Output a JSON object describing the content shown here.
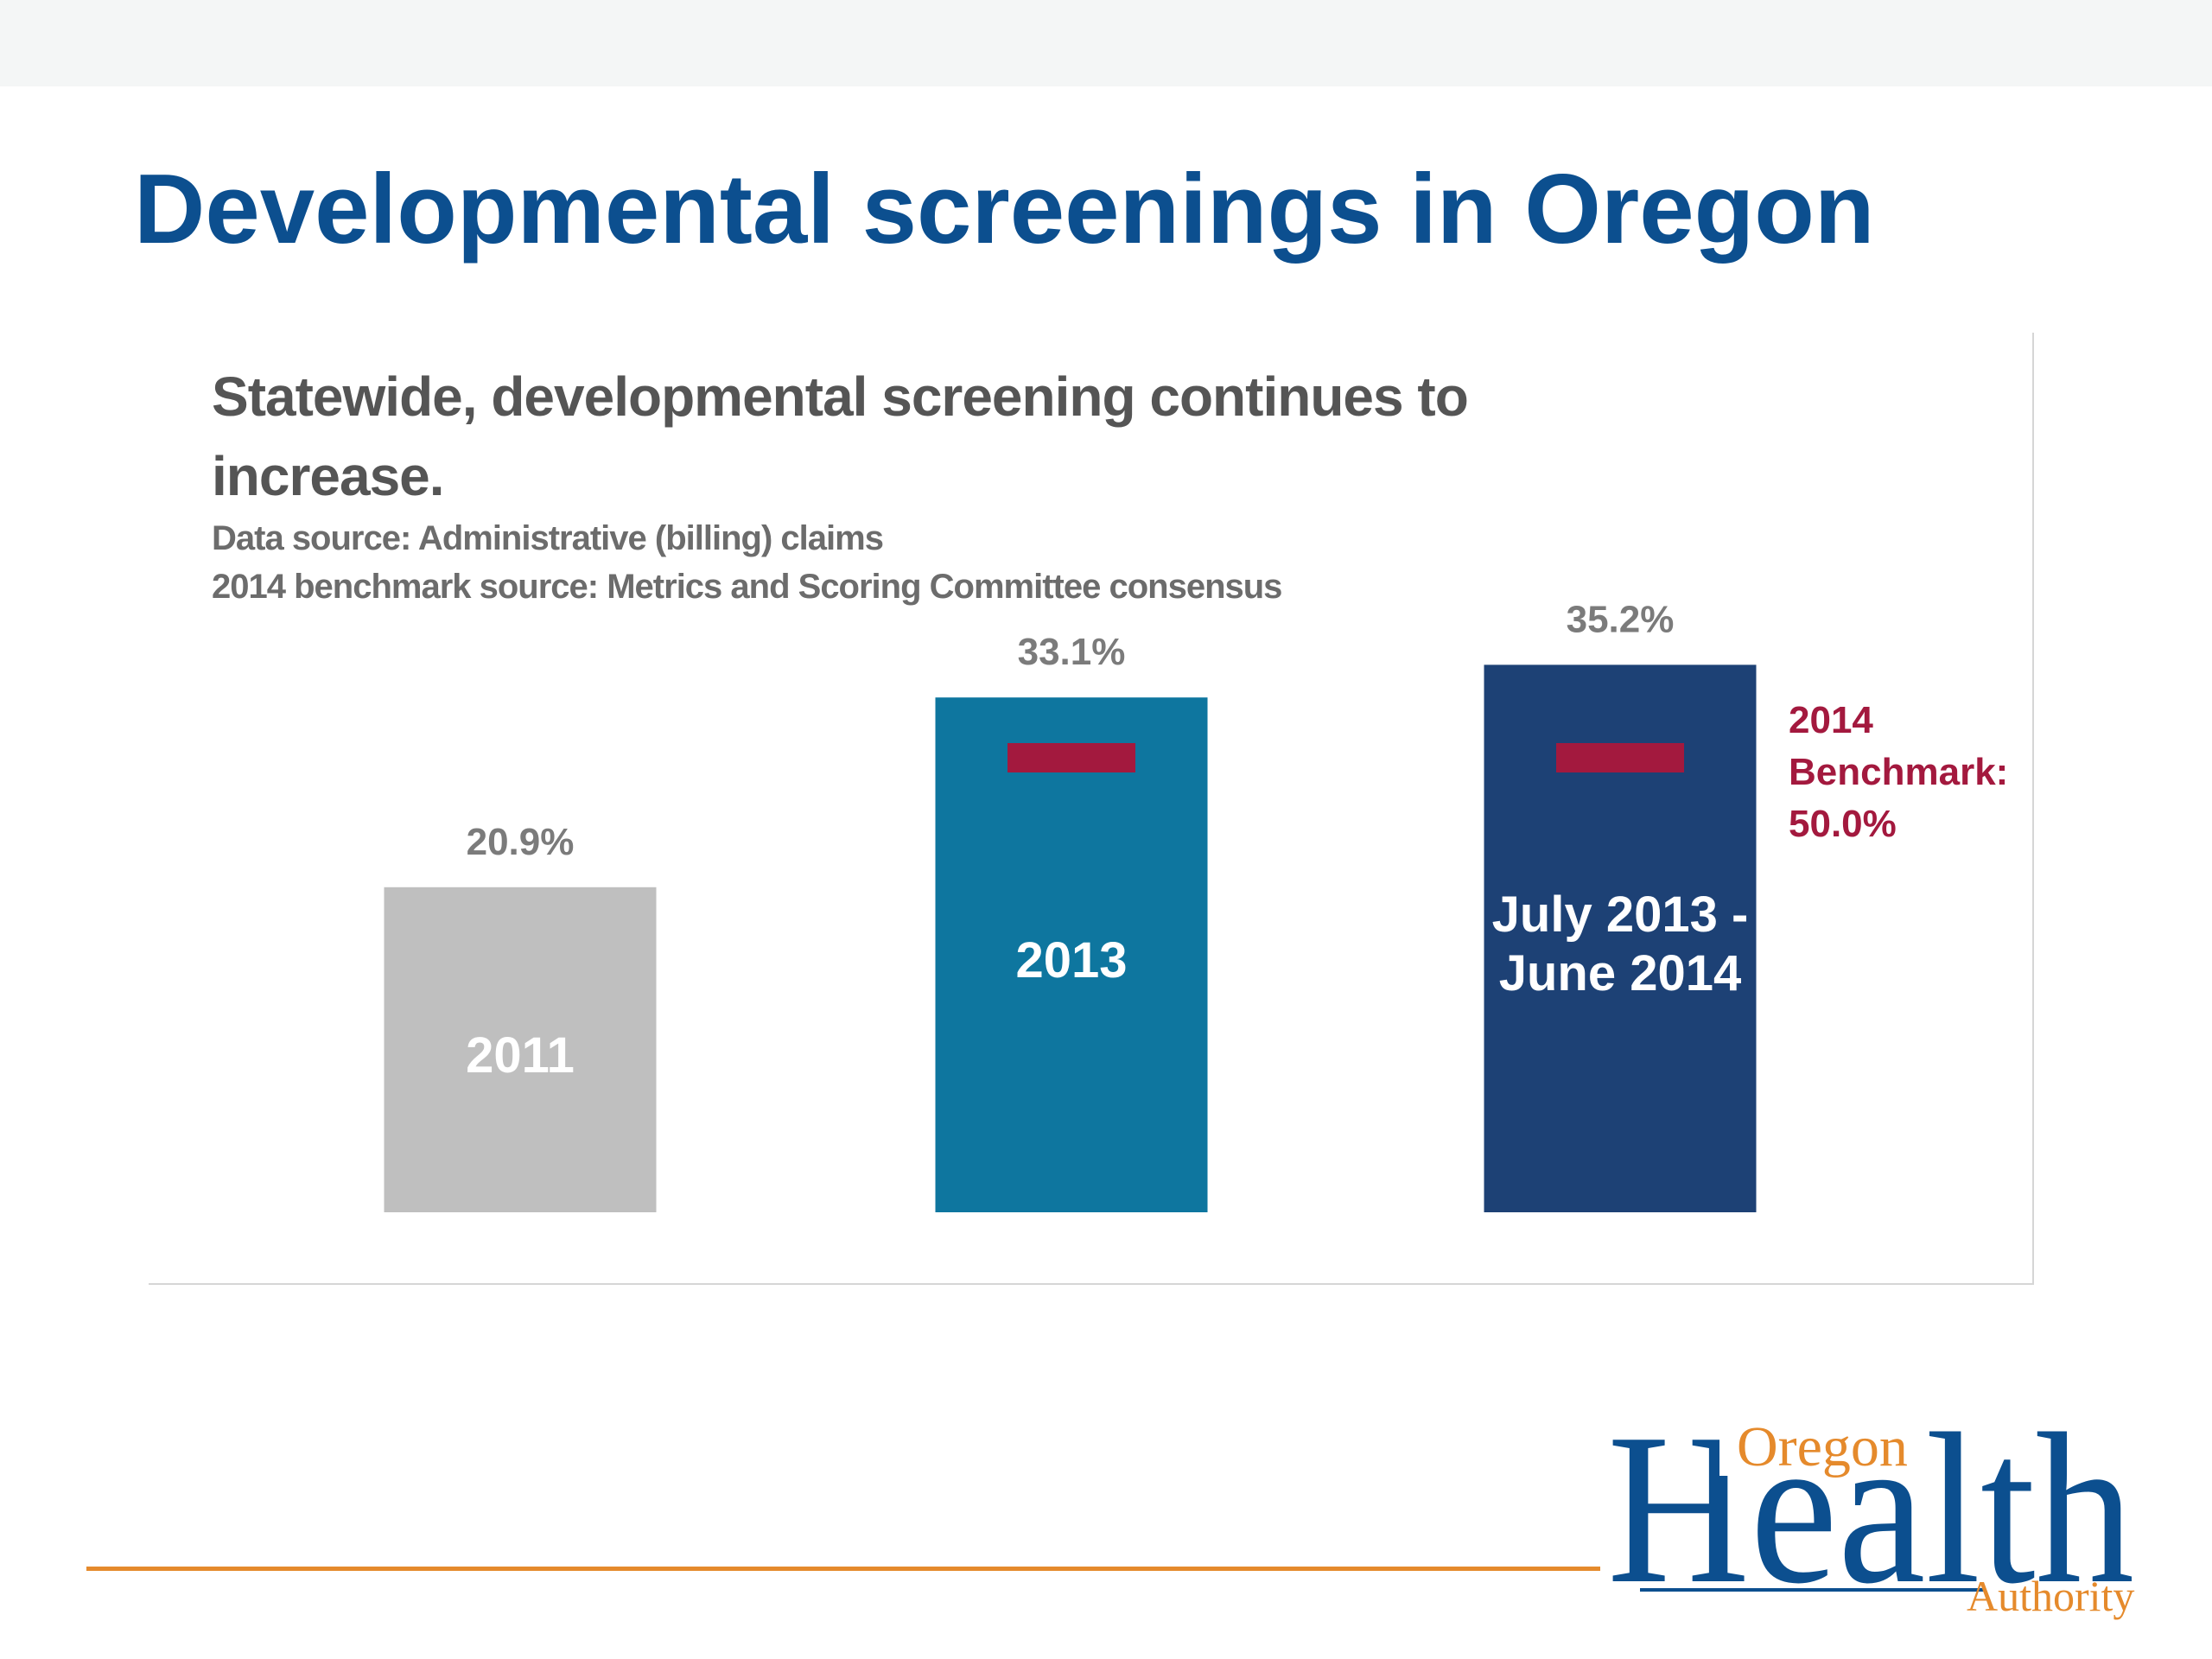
{
  "slide": {
    "title": "Developmental screenings in Oregon"
  },
  "chart_data": {
    "type": "bar",
    "title_lines": [
      "Statewide, developmental screening continues to",
      "increase."
    ],
    "source_lines": [
      "Data source: Administrative (billing) claims",
      "2014 benchmark source: Metrics and Scoring Committee consensus"
    ],
    "categories": [
      [
        "2011"
      ],
      [
        "2013"
      ],
      [
        "July 2013 -",
        "June 2014"
      ]
    ],
    "values": [
      20.9,
      33.1,
      35.2
    ],
    "value_labels": [
      "20.9%",
      "33.1%",
      "35.2%"
    ],
    "bar_colors": [
      "#bfbfbf",
      "#0e769f",
      "#1d4175"
    ],
    "benchmark": {
      "value": 50.0,
      "label_lines": [
        "2014",
        "Benchmark:",
        "50.0%"
      ],
      "color": "#a3193e",
      "shown_for_bars": [
        1,
        2
      ]
    },
    "xlabel": "",
    "ylabel": "",
    "grid": false
  },
  "logo": {
    "lines": [
      "Oregon",
      "Health",
      "Authority"
    ],
    "primary_color": "#0c4f8f",
    "accent_color": "#e58a2c"
  }
}
